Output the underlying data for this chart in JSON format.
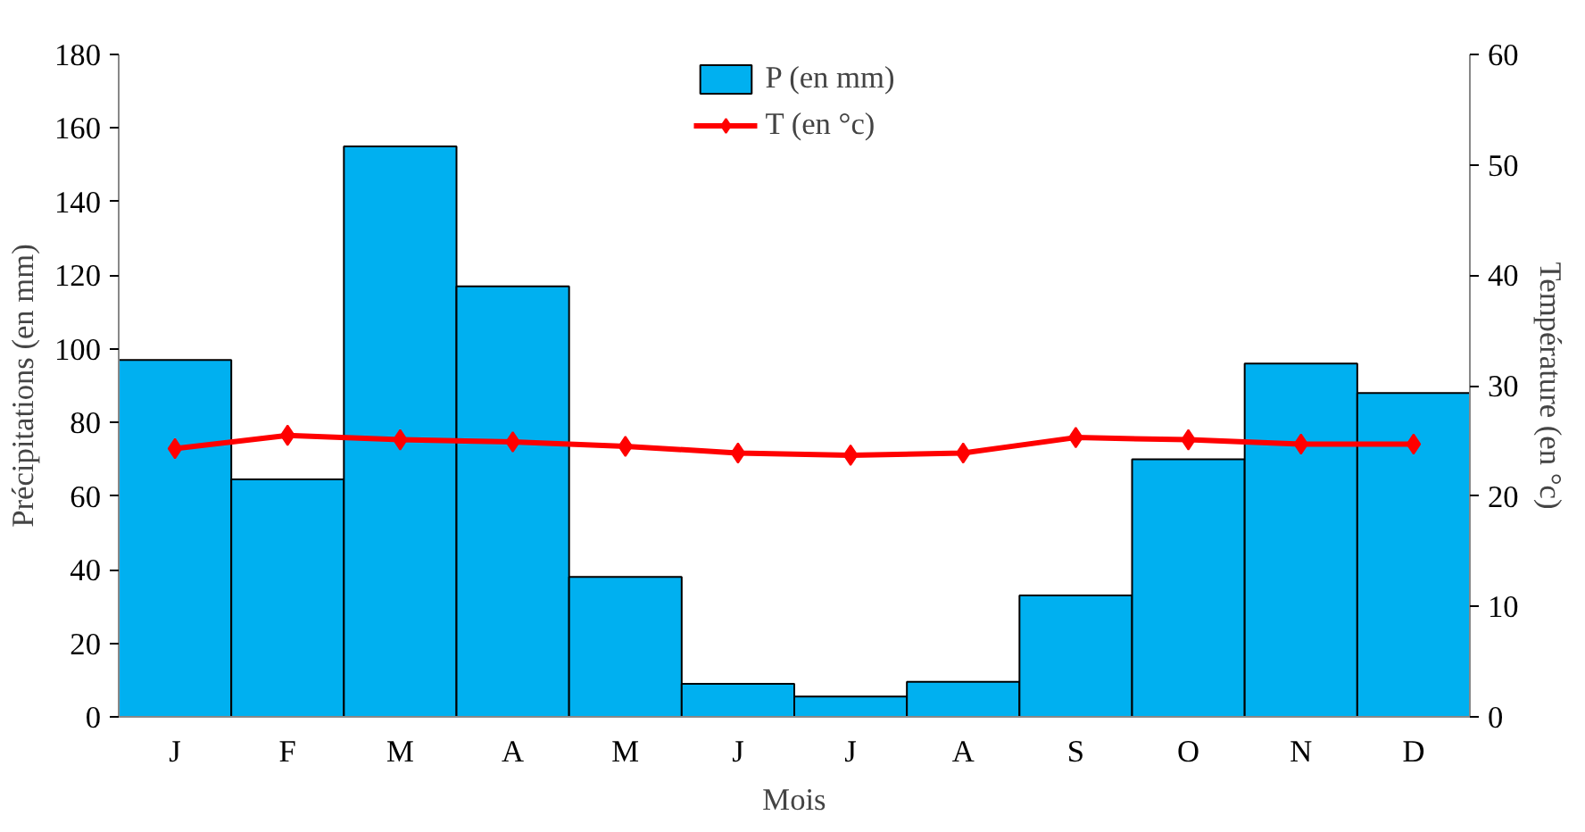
{
  "chart_data": {
    "type": "bar",
    "xlabel": "Mois",
    "ylabel": "Précipitations (en mm)",
    "y2label": "Température (en °c)",
    "categories": [
      "J",
      "F",
      "M",
      "A",
      "M",
      "J",
      "J",
      "A",
      "S",
      "O",
      "N",
      "D"
    ],
    "series": [
      {
        "name": "P (en mm)",
        "color": "#00b0f0",
        "values": [
          97,
          64.5,
          155,
          117,
          38,
          9,
          5.5,
          9.5,
          33,
          70,
          96,
          88
        ]
      },
      {
        "name": "T (en °c)",
        "type": "line",
        "axis": "y2",
        "color": "#ff0000",
        "marker": "diamond",
        "values": [
          24.3,
          25.5,
          25.1,
          24.9,
          24.5,
          23.9,
          23.7,
          23.9,
          25.3,
          25.1,
          24.7,
          24.7
        ]
      }
    ],
    "ylim": [
      0,
      180
    ],
    "yticks": [
      0,
      20,
      40,
      60,
      80,
      100,
      120,
      140,
      160,
      180
    ],
    "y2lim": [
      0,
      60
    ],
    "y2ticks": [
      0,
      10,
      20,
      30,
      40,
      50,
      60
    ],
    "legend": "top",
    "grid": false
  }
}
